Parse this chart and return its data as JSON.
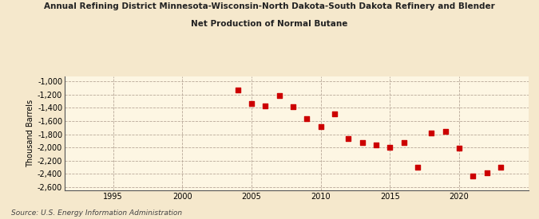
{
  "title_line1": "Annual Refining District Minnesota-Wisconsin-North Dakota-South Dakota Refinery and Blender",
  "title_line2": "Net Production of Normal Butane",
  "ylabel": "Thousand Barrels",
  "source": "Source: U.S. Energy Information Administration",
  "background_color": "#f5e8cc",
  "plot_background_color": "#fdf6e3",
  "marker_color": "#cc0000",
  "grid_color": "#b8a898",
  "xlim": [
    1991.5,
    2025
  ],
  "ylim": [
    -2650,
    -930
  ],
  "yticks": [
    -1000,
    -1200,
    -1400,
    -1600,
    -1800,
    -2000,
    -2200,
    -2400,
    -2600
  ],
  "xticks": [
    1995,
    2000,
    2005,
    2010,
    2015,
    2020
  ],
  "data_years": [
    2004,
    2005,
    2006,
    2007,
    2008,
    2009,
    2010,
    2011,
    2012,
    2013,
    2014,
    2015,
    2016,
    2017,
    2018,
    2019,
    2020,
    2021,
    2022,
    2023
  ],
  "data_values": [
    -1130,
    -1340,
    -1370,
    -1220,
    -1390,
    -1560,
    -1680,
    -1490,
    -1860,
    -1930,
    -1960,
    -2000,
    -1920,
    -2300,
    -1780,
    -1760,
    -2010,
    -2430,
    -2380,
    -2300
  ]
}
